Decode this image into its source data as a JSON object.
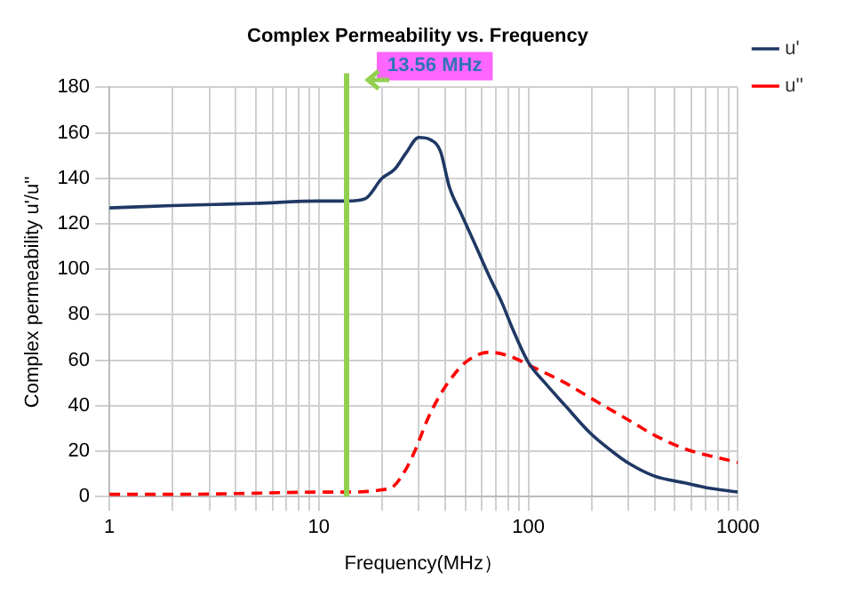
{
  "chart_data": {
    "type": "line",
    "title": "Complex Permeability vs. Frequency",
    "xlabel": "Frequency(MHz）",
    "ylabel": "Complex permeability u'/u''",
    "log": "x",
    "xlim": [
      1,
      1000
    ],
    "xticks": [
      1,
      {
        "value": 2,
        "label": null
      },
      {
        "value": 3,
        "label": null
      },
      {
        "value": 4,
        "label": null
      },
      {
        "value": 5,
        "label": null
      },
      {
        "value": 6,
        "label": null
      },
      {
        "value": 7,
        "label": null
      },
      {
        "value": 8,
        "label": null
      },
      {
        "value": 9,
        "label": null
      },
      10,
      {
        "value": 20,
        "label": null
      },
      {
        "value": 30,
        "label": null
      },
      {
        "value": 40,
        "label": null
      },
      {
        "value": 50,
        "label": null
      },
      {
        "value": 60,
        "label": null
      },
      {
        "value": 70,
        "label": null
      },
      {
        "value": 80,
        "label": null
      },
      {
        "value": 90,
        "label": null
      },
      100,
      {
        "value": 200,
        "label": null
      },
      {
        "value": 300,
        "label": null
      },
      {
        "value": 400,
        "label": null
      },
      {
        "value": 500,
        "label": null
      },
      {
        "value": 600,
        "label": null
      },
      {
        "value": 700,
        "label": null
      },
      {
        "value": 800,
        "label": null
      },
      {
        "value": 900,
        "label": null
      },
      1000
    ],
    "ylim": [
      0,
      180
    ],
    "yticks": [
      0,
      20,
      40,
      60,
      80,
      100,
      120,
      140,
      160,
      180
    ],
    "grid": true,
    "legend": "top right",
    "marker": "none",
    "series": [
      {
        "name": "u'",
        "color": "#1f3864",
        "line_style": "solid",
        "x": [
          1,
          2,
          5,
          10,
          13.56,
          16.6,
          20,
          23,
          26,
          30,
          34,
          38,
          42,
          48,
          55,
          65,
          75,
          83,
          100,
          120,
          150,
          197,
          250,
          303,
          400,
          559,
          700,
          1000
        ],
        "values": [
          127,
          128,
          129,
          130,
          130,
          131,
          140,
          144,
          151,
          158,
          157,
          152,
          136,
          124,
          112,
          97,
          85,
          75,
          59,
          50,
          40,
          28,
          20,
          14.5,
          9,
          6,
          4,
          2
        ]
      },
      {
        "name": "u''",
        "color": "#ff0000",
        "line_style": "dashed",
        "x": [
          1,
          2,
          5,
          10,
          13.56,
          20,
          22.7,
          26,
          29,
          33,
          37.5,
          42,
          50,
          65,
          80,
          105,
          150,
          197,
          303,
          400,
          559,
          1000
        ],
        "values": [
          1,
          1,
          1.5,
          2,
          2,
          3,
          4.5,
          12,
          21,
          34,
          44,
          51,
          59,
          63.5,
          62,
          57,
          50,
          43.5,
          33.5,
          27,
          21,
          15
        ]
      }
    ],
    "ref_lines": [
      {
        "axis": "x",
        "value": 13.56,
        "label": "13.56 MHz",
        "color": "#92d050"
      }
    ]
  }
}
